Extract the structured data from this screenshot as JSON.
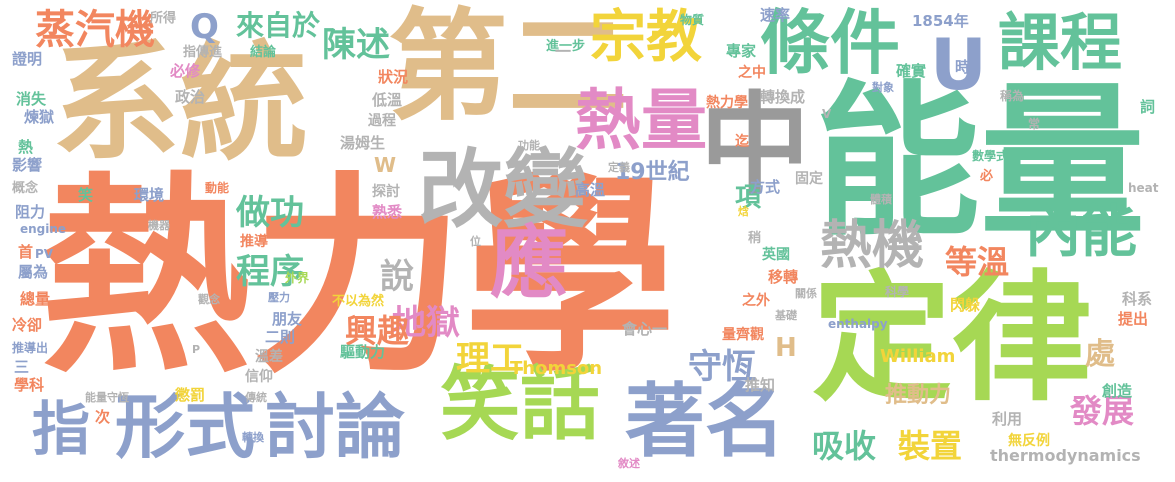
{
  "palette": {
    "orange": "#f2865f",
    "tan": "#e0bd8a",
    "green": "#63c29a",
    "lime": "#a6d854",
    "yellow": "#f2d43a",
    "blue": "#8da0cb",
    "pink": "#e28ac5",
    "gray": "#b3b3b3",
    "darkgray": "#9a9a9a"
  },
  "words": [
    {
      "id": "w1",
      "text": "熱力學",
      "color": "orange"
    },
    {
      "id": "w2",
      "text": "系統",
      "color": "tan"
    },
    {
      "id": "w3",
      "text": "第二",
      "color": "tan"
    },
    {
      "id": "w4",
      "text": "能量",
      "color": "green"
    },
    {
      "id": "w5",
      "text": "定律",
      "color": "lime"
    },
    {
      "id": "w6",
      "text": "中",
      "color": "darkgray"
    },
    {
      "id": "w7",
      "text": "改變",
      "color": "gray"
    },
    {
      "id": "w8",
      "text": "宗教",
      "color": "yellow"
    },
    {
      "id": "w9",
      "text": "條件",
      "color": "green"
    },
    {
      "id": "w10",
      "text": "課程",
      "color": "green"
    },
    {
      "id": "w11",
      "text": "U",
      "color": "blue"
    },
    {
      "id": "w12",
      "text": "熱量",
      "color": "pink"
    },
    {
      "id": "w13",
      "text": "應",
      "color": "pink"
    },
    {
      "id": "w14",
      "text": "熱機",
      "color": "gray"
    },
    {
      "id": "w15",
      "text": "內能",
      "color": "green"
    },
    {
      "id": "w16",
      "text": "笑話",
      "color": "lime"
    },
    {
      "id": "w17",
      "text": "著名",
      "color": "blue"
    },
    {
      "id": "w18",
      "text": "形式",
      "color": "blue"
    },
    {
      "id": "w19",
      "text": "討論",
      "color": "blue"
    },
    {
      "id": "w20",
      "text": "指",
      "color": "blue"
    },
    {
      "id": "w21",
      "text": "蒸汽機",
      "color": "orange"
    },
    {
      "id": "w22",
      "text": "Q",
      "color": "blue"
    },
    {
      "id": "w23",
      "text": "來自於",
      "color": "green"
    },
    {
      "id": "w24",
      "text": "陳述",
      "color": "green"
    },
    {
      "id": "w25",
      "text": "做功",
      "color": "green"
    },
    {
      "id": "w26",
      "text": "程序",
      "color": "green"
    },
    {
      "id": "w27",
      "text": "說",
      "color": "gray"
    },
    {
      "id": "w28",
      "text": "地獄",
      "color": "pink"
    },
    {
      "id": "w29",
      "text": "理工",
      "color": "yellow"
    },
    {
      "id": "w30",
      "text": "興趣",
      "color": "orange"
    },
    {
      "id": "w31",
      "text": "守恆",
      "color": "blue"
    },
    {
      "id": "w32",
      "text": "等溫",
      "color": "orange"
    },
    {
      "id": "w33",
      "text": "吸收",
      "color": "green"
    },
    {
      "id": "w34",
      "text": "裝置",
      "color": "yellow"
    },
    {
      "id": "w35",
      "text": "發展",
      "color": "pink"
    },
    {
      "id": "w36",
      "text": "推動力",
      "color": "tan"
    },
    {
      "id": "w37",
      "text": "處",
      "color": "tan"
    },
    {
      "id": "w38",
      "text": "項",
      "color": "green"
    },
    {
      "id": "w39",
      "text": "H",
      "color": "tan"
    },
    {
      "id": "w40",
      "text": "W",
      "color": "tan"
    },
    {
      "id": "w41",
      "text": "19世紀",
      "color": "blue"
    },
    {
      "id": "w42",
      "text": "Thomson",
      "color": "yellow"
    },
    {
      "id": "w43",
      "text": "William",
      "color": "yellow"
    },
    {
      "id": "w44",
      "text": "thermodynamics",
      "color": "gray"
    },
    {
      "id": "w45",
      "text": "1854年",
      "color": "blue"
    },
    {
      "id": "w46",
      "text": "速率",
      "color": "blue"
    },
    {
      "id": "w47",
      "text": "專家",
      "color": "green"
    },
    {
      "id": "w48",
      "text": "確實",
      "color": "green"
    },
    {
      "id": "w49",
      "text": "時",
      "color": "blue"
    },
    {
      "id": "w50",
      "text": "轉換成",
      "color": "gray"
    },
    {
      "id": "w51",
      "text": "熱力學",
      "color": "orange"
    },
    {
      "id": "w52",
      "text": "之中",
      "color": "orange"
    },
    {
      "id": "w53",
      "text": "迄",
      "color": "orange"
    },
    {
      "id": "w54",
      "text": "高溫",
      "color": "blue"
    },
    {
      "id": "w55",
      "text": "方式",
      "color": "blue"
    },
    {
      "id": "w56",
      "text": "固定",
      "color": "gray"
    },
    {
      "id": "w57",
      "text": "英國",
      "color": "green"
    },
    {
      "id": "w58",
      "text": "移轉",
      "color": "orange"
    },
    {
      "id": "w59",
      "text": "閃躲",
      "color": "yellow"
    },
    {
      "id": "w60",
      "text": "之外",
      "color": "orange"
    },
    {
      "id": "w61",
      "text": "會心一",
      "color": "gray"
    },
    {
      "id": "w62",
      "text": "量齊觀",
      "color": "orange"
    },
    {
      "id": "w63",
      "text": "推知",
      "color": "gray"
    },
    {
      "id": "w64",
      "text": "利用",
      "color": "gray"
    },
    {
      "id": "w65",
      "text": "無反例",
      "color": "yellow"
    },
    {
      "id": "w66",
      "text": "創造",
      "color": "green"
    },
    {
      "id": "w67",
      "text": "提出",
      "color": "orange"
    },
    {
      "id": "w68",
      "text": "科系",
      "color": "gray"
    },
    {
      "id": "w69",
      "text": "科學",
      "color": "gray"
    },
    {
      "id": "w70",
      "text": "enthalpy",
      "color": "blue"
    },
    {
      "id": "w71",
      "text": "heat",
      "color": "gray"
    },
    {
      "id": "w72",
      "text": "數學式",
      "color": "green"
    },
    {
      "id": "w73",
      "text": "必",
      "color": "orange"
    },
    {
      "id": "w74",
      "text": "稱為",
      "color": "gray"
    },
    {
      "id": "w75",
      "text": "詞",
      "color": "green"
    },
    {
      "id": "w76",
      "text": "常",
      "color": "gray"
    },
    {
      "id": "w77",
      "text": "對象",
      "color": "blue"
    },
    {
      "id": "w78",
      "text": "V",
      "color": "gray"
    },
    {
      "id": "w79",
      "text": "物質",
      "color": "green"
    },
    {
      "id": "w80",
      "text": "進一步",
      "color": "green"
    },
    {
      "id": "w81",
      "text": "所得",
      "color": "gray"
    },
    {
      "id": "w82",
      "text": "指傳進",
      "color": "gray"
    },
    {
      "id": "w83",
      "text": "結論",
      "color": "green"
    },
    {
      "id": "w84",
      "text": "證明",
      "color": "blue"
    },
    {
      "id": "w85",
      "text": "必修",
      "color": "pink"
    },
    {
      "id": "w86",
      "text": "狀況",
      "color": "orange"
    },
    {
      "id": "w87",
      "text": "消失",
      "color": "green"
    },
    {
      "id": "w88",
      "text": "政治",
      "color": "gray"
    },
    {
      "id": "w89",
      "text": "低溫",
      "color": "gray"
    },
    {
      "id": "w90",
      "text": "煉獄",
      "color": "blue"
    },
    {
      "id": "w91",
      "text": "過程",
      "color": "gray"
    },
    {
      "id": "w92",
      "text": "湯姆生",
      "color": "gray"
    },
    {
      "id": "w93",
      "text": "熱",
      "color": "green"
    },
    {
      "id": "w94",
      "text": "影響",
      "color": "blue"
    },
    {
      "id": "w95",
      "text": "概念",
      "color": "gray"
    },
    {
      "id": "w96",
      "text": "笑",
      "color": "green"
    },
    {
      "id": "w97",
      "text": "動能",
      "color": "orange"
    },
    {
      "id": "w98",
      "text": "環境",
      "color": "blue"
    },
    {
      "id": "w99",
      "text": "阻力",
      "color": "blue"
    },
    {
      "id": "w100",
      "text": "engine",
      "color": "blue"
    },
    {
      "id": "w101",
      "text": "機器",
      "color": "gray"
    },
    {
      "id": "w102",
      "text": "探討",
      "color": "gray"
    },
    {
      "id": "w103",
      "text": "熟悉",
      "color": "pink"
    },
    {
      "id": "w104",
      "text": "功能",
      "color": "gray"
    },
    {
      "id": "w105",
      "text": "定義",
      "color": "gray"
    },
    {
      "id": "w106",
      "text": "推導",
      "color": "orange"
    },
    {
      "id": "w107",
      "text": "首",
      "color": "orange"
    },
    {
      "id": "w108",
      "text": "PV",
      "color": "blue"
    },
    {
      "id": "w109",
      "text": "屬為",
      "color": "blue"
    },
    {
      "id": "w110",
      "text": "外界",
      "color": "lime"
    },
    {
      "id": "w111",
      "text": "觀念",
      "color": "gray"
    },
    {
      "id": "w112",
      "text": "壓力",
      "color": "blue"
    },
    {
      "id": "w113",
      "text": "總量",
      "color": "orange"
    },
    {
      "id": "w114",
      "text": "不以為然",
      "color": "yellow"
    },
    {
      "id": "w115",
      "text": "冷卻",
      "color": "orange"
    },
    {
      "id": "w116",
      "text": "朋友",
      "color": "blue"
    },
    {
      "id": "w117",
      "text": "二則",
      "color": "blue"
    },
    {
      "id": "w118",
      "text": "推導出",
      "color": "blue"
    },
    {
      "id": "w119",
      "text": "P",
      "color": "gray"
    },
    {
      "id": "w120",
      "text": "溫差",
      "color": "gray"
    },
    {
      "id": "w121",
      "text": "驅動力",
      "color": "green"
    },
    {
      "id": "w122",
      "text": "三",
      "color": "blue"
    },
    {
      "id": "w123",
      "text": "學科",
      "color": "orange"
    },
    {
      "id": "w124",
      "text": "信仰",
      "color": "gray"
    },
    {
      "id": "w125",
      "text": "能量守恆",
      "color": "gray"
    },
    {
      "id": "w126",
      "text": "傳統",
      "color": "gray"
    },
    {
      "id": "w127",
      "text": "懲罰",
      "color": "yellow"
    },
    {
      "id": "w128",
      "text": "次",
      "color": "orange"
    },
    {
      "id": "w129",
      "text": "轉換",
      "color": "blue"
    },
    {
      "id": "w130",
      "text": "敘述",
      "color": "pink"
    },
    {
      "id": "w131",
      "text": "位",
      "color": "gray"
    },
    {
      "id": "w132",
      "text": "焓",
      "color": "yellow"
    },
    {
      "id": "w133",
      "text": "稍",
      "color": "gray"
    },
    {
      "id": "w134",
      "text": "關係",
      "color": "gray"
    },
    {
      "id": "w135",
      "text": "基礎",
      "color": "gray"
    },
    {
      "id": "w136",
      "text": "體積",
      "color": "gray"
    },
    {
      "id": "w137",
      "text": "一",
      "color": "gray"
    }
  ]
}
